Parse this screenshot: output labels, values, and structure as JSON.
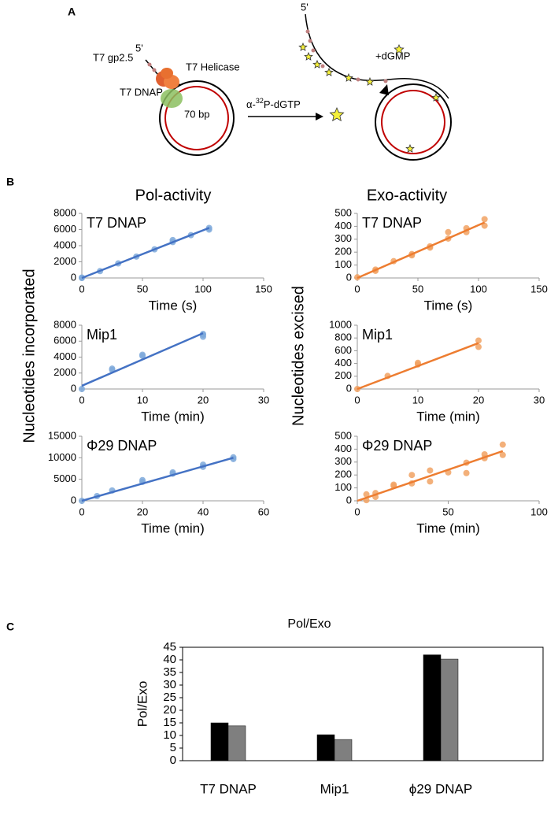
{
  "panel_a": {
    "label": "A",
    "five_prime_left": "5'",
    "gp25": "T7 gp2.5",
    "helicase": "T7 Helicase",
    "dnap": "T7 DNAP",
    "bp": "70 bp",
    "arrow_pre": "α-",
    "arrow_sup": "32",
    "arrow_post": "P-dGTP",
    "five_prime_right": "5'",
    "dgmp": "+dGMP"
  },
  "panel_b": {
    "label": "B",
    "columns": [
      "Pol-activity",
      "Exo-activity"
    ],
    "y_labels": [
      "Nucleotides incorporated",
      "Nucleotides excised"
    ]
  },
  "panel_c": {
    "label": "C"
  },
  "chart_data": [
    {
      "type": "scatter",
      "annotation": "T7 DNAP",
      "xlabel": "Time (s)",
      "xlim": [
        0,
        150
      ],
      "xticks": [
        0,
        50,
        100,
        150
      ],
      "ylim": [
        0,
        8000
      ],
      "yticks": [
        0,
        2000,
        4000,
        6000,
        8000
      ],
      "series": [
        {
          "style": "points",
          "color": "#7ea9da",
          "x": [
            0,
            0,
            15,
            30,
            45,
            60,
            75,
            75,
            90,
            105,
            105
          ],
          "values": [
            0,
            50,
            850,
            1800,
            2650,
            3550,
            4450,
            4700,
            5300,
            6000,
            6200
          ]
        },
        {
          "style": "line",
          "color": "#4472c4",
          "x": [
            0,
            105
          ],
          "values": [
            0,
            6200
          ]
        }
      ]
    },
    {
      "type": "scatter",
      "annotation": "T7 DNAP",
      "xlabel": "Time (s)",
      "xlim": [
        0,
        150
      ],
      "xticks": [
        0,
        50,
        100,
        150
      ],
      "ylim": [
        0,
        500
      ],
      "yticks": [
        0,
        100,
        200,
        300,
        400,
        500
      ],
      "series": [
        {
          "style": "points",
          "color": "#f1a263",
          "x": [
            0,
            15,
            15,
            30,
            45,
            45,
            60,
            60,
            75,
            75,
            90,
            90,
            105,
            105
          ],
          "values": [
            5,
            55,
            65,
            130,
            175,
            185,
            235,
            245,
            305,
            355,
            355,
            385,
            405,
            455
          ]
        },
        {
          "style": "line",
          "color": "#ed7d31",
          "x": [
            0,
            105
          ],
          "values": [
            0,
            430
          ]
        }
      ]
    },
    {
      "type": "scatter",
      "annotation": "Mip1",
      "xlabel": "Time (min)",
      "xlim": [
        0,
        30
      ],
      "xticks": [
        0,
        10,
        20,
        30
      ],
      "ylim": [
        0,
        8000
      ],
      "yticks": [
        0,
        2000,
        4000,
        6000,
        8000
      ],
      "series": [
        {
          "style": "points",
          "color": "#7ea9da",
          "x": [
            0,
            5,
            5,
            10,
            10,
            20,
            20,
            20
          ],
          "values": [
            0,
            2400,
            2550,
            4150,
            4300,
            6550,
            6800,
            6900
          ]
        },
        {
          "style": "line",
          "color": "#4472c4",
          "x": [
            0,
            20
          ],
          "values": [
            400,
            7000
          ]
        }
      ]
    },
    {
      "type": "scatter",
      "annotation": "Mip1",
      "xlabel": "Time (min)",
      "xlim": [
        0,
        30
      ],
      "xticks": [
        0,
        10,
        20,
        30
      ],
      "ylim": [
        0,
        1000
      ],
      "yticks": [
        0,
        200,
        400,
        600,
        800,
        1000
      ],
      "series": [
        {
          "style": "points",
          "color": "#f1a263",
          "x": [
            0,
            5,
            10,
            10,
            20,
            20
          ],
          "values": [
            0,
            205,
            385,
            410,
            660,
            760
          ]
        },
        {
          "style": "line",
          "color": "#ed7d31",
          "x": [
            0,
            20
          ],
          "values": [
            0,
            720
          ]
        }
      ]
    },
    {
      "type": "scatter",
      "annotation": "Φ29 DNAP",
      "xlabel": "Time (min)",
      "xlim": [
        0,
        60
      ],
      "xticks": [
        0,
        20,
        40,
        60
      ],
      "ylim": [
        0,
        15000
      ],
      "yticks": [
        0,
        5000,
        10000,
        15000
      ],
      "series": [
        {
          "style": "points",
          "color": "#7ea9da",
          "x": [
            0,
            5,
            10,
            20,
            20,
            30,
            30,
            40,
            40,
            50,
            50
          ],
          "values": [
            0,
            1100,
            2400,
            4400,
            4800,
            6300,
            6600,
            7900,
            8400,
            9700,
            10100
          ]
        },
        {
          "style": "line",
          "color": "#4472c4",
          "x": [
            0,
            50
          ],
          "values": [
            0,
            10000
          ]
        }
      ]
    },
    {
      "type": "scatter",
      "annotation": "Φ29 DNAP",
      "xlabel": "Time (min)",
      "xlim": [
        0,
        100
      ],
      "xticks": [
        0,
        50,
        100
      ],
      "ylim": [
        0,
        500
      ],
      "yticks": [
        0,
        100,
        200,
        300,
        400,
        500
      ],
      "series": [
        {
          "style": "points",
          "color": "#f1a263",
          "x": [
            5,
            5,
            10,
            10,
            20,
            20,
            30,
            30,
            40,
            40,
            50,
            60,
            60,
            70,
            70,
            80,
            80
          ],
          "values": [
            5,
            50,
            30,
            60,
            115,
            125,
            135,
            200,
            150,
            235,
            220,
            215,
            295,
            330,
            360,
            355,
            435
          ]
        },
        {
          "style": "line",
          "color": "#ed7d31",
          "x": [
            0,
            80
          ],
          "values": [
            0,
            385
          ]
        }
      ]
    },
    {
      "type": "bar",
      "title": "Pol/Exo",
      "ylabel": "Pol/Exo",
      "categories": [
        "T7 DNAP",
        "Mip1",
        "ϕ29 DNAP"
      ],
      "ylim": [
        0,
        45
      ],
      "yticks": [
        0,
        5,
        10,
        15,
        20,
        25,
        30,
        35,
        40,
        45
      ],
      "series": [
        {
          "color": "#000000",
          "values": [
            15,
            10.3,
            42
          ]
        },
        {
          "color": "#7f7f7f",
          "values": [
            13.8,
            8.4,
            40.3
          ]
        }
      ]
    }
  ]
}
